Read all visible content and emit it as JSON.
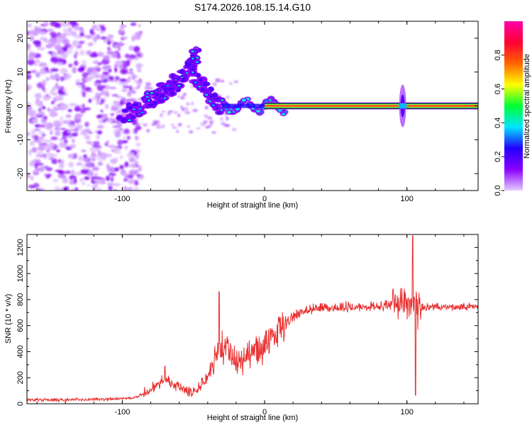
{
  "chart_data": [
    {
      "type": "heatmap",
      "title": "S174.2026.108.15.14.G10",
      "xlabel": "Height of straight line (km)",
      "ylabel": "Frequency (Hz)",
      "xlim": [
        -167,
        150
      ],
      "ylim": [
        -25,
        25
      ],
      "xticks": [
        -100,
        0,
        100
      ],
      "xtick_labels": [
        "-100",
        "0",
        "100"
      ],
      "yticks": [
        -20,
        -10,
        0,
        10,
        20
      ],
      "ytick_labels": [
        "-20",
        "-10",
        "0",
        "10",
        "20"
      ],
      "colorbar": {
        "label": "Normalized spectral amplitude",
        "range": [
          0,
          1
        ],
        "ticks": [
          0.0,
          0.2,
          0.4,
          0.6,
          0.8
        ],
        "tick_labels": [
          "0.0",
          "0.2",
          "0.4",
          "0.6",
          "0.8"
        ],
        "colors": [
          "#e6ccff",
          "#8a00ff",
          "#2200ff",
          "#00e5ff",
          "#00ff33",
          "#ffff00",
          "#ff6600",
          "#ff0033",
          "#ff00aa"
        ]
      },
      "features": {
        "noise_region_x": [
          -167,
          -95
        ],
        "tilted_ridge": {
          "x": [
            -100,
            -85,
            -75,
            -65,
            -55,
            -48
          ],
          "freq": [
            -3,
            0,
            3,
            6,
            9,
            16
          ]
        },
        "secondary_ridge": {
          "x": [
            -50,
            -40,
            -30
          ],
          "freq": [
            10,
            4,
            0
          ]
        },
        "carrier_line": {
          "x_start": -30,
          "x_end": 150,
          "freq": 0,
          "strong_from_x": 0
        },
        "spike_x": 97
      }
    },
    {
      "type": "line",
      "xlabel": "Height of straight line (km)",
      "ylabel": "SNR (10 * v/v)",
      "xlim": [
        -167,
        150
      ],
      "ylim": [
        0,
        1300
      ],
      "xticks": [
        -100,
        0,
        100
      ],
      "xtick_labels": [
        "-100",
        "0",
        "100"
      ],
      "yticks": [
        0,
        200,
        400,
        600,
        800,
        1000,
        1200
      ],
      "ytick_labels": [
        "0",
        "200",
        "400",
        "600",
        "800",
        "1000",
        "1200"
      ],
      "series": [
        {
          "name": "SNR",
          "color": "#e83030",
          "x": [
            -167,
            -140,
            -110,
            -90,
            -80,
            -75,
            -70,
            -65,
            -60,
            -55,
            -50,
            -45,
            -40,
            -35,
            -30,
            -25,
            -20,
            -15,
            -10,
            -5,
            0,
            5,
            10,
            15,
            20,
            25,
            30,
            40,
            50,
            60,
            70,
            80,
            90,
            95,
            100,
            103,
            106,
            110,
            120,
            130,
            140,
            150
          ],
          "y": [
            30,
            30,
            35,
            50,
            110,
            160,
            200,
            150,
            130,
            90,
            100,
            150,
            200,
            330,
            430,
            400,
            310,
            340,
            390,
            400,
            430,
            520,
            580,
            620,
            670,
            700,
            720,
            740,
            740,
            745,
            750,
            750,
            760,
            770,
            740,
            720,
            730,
            740,
            745,
            740,
            745,
            745
          ],
          "spikes": [
            {
              "x": -70,
              "y": 290
            },
            {
              "x": -32,
              "y": 860
            },
            {
              "x": 104,
              "y": 1290
            },
            {
              "x": 106,
              "y": 65
            }
          ]
        }
      ]
    }
  ]
}
